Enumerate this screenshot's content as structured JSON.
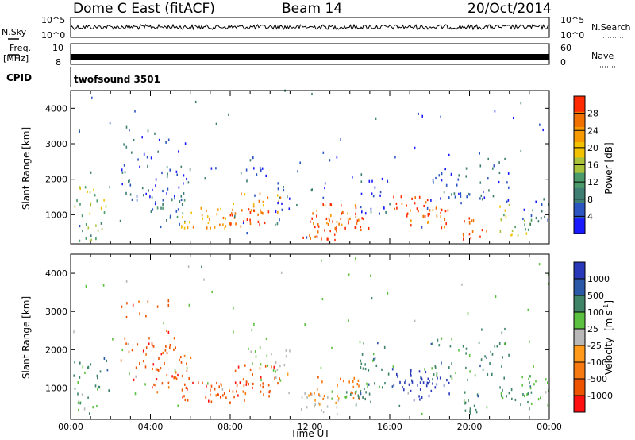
{
  "header": {
    "title": "Dome C East (fitACF)",
    "beam": "Beam 14",
    "date": "20/Oct/2014"
  },
  "side_labels": {
    "nsky": "N.Sky",
    "freq": "Freq.",
    "freq_unit": "[MHz]",
    "cpid": "CPID",
    "nsearch": "N.Search",
    "nave": "Nave"
  },
  "strip_ticks": {
    "nsky_top": "10^5",
    "nsky_bottom": "10^0",
    "freq_top": "10",
    "freq_bottom": "8",
    "nsearch_top": "10^5",
    "nsearch_bottom": "10^0",
    "nave_top": "60",
    "nave_bottom": "0"
  },
  "cpid_text": "twofsound 3501",
  "colors": {
    "power": [
      "#1a1aff",
      "#2b55c0",
      "#3f7f73",
      "#4a9a6a",
      "#a8c33a",
      "#f2c200",
      "#f59a00",
      "#f07000",
      "#ff2a00"
    ],
    "velocity": [
      "#2838b8",
      "#2c58a8",
      "#3f8466",
      "#5cc040",
      "#b8b8b8",
      "#ff9a1a",
      "#f77a10",
      "#ee5400",
      "#ff1010"
    ]
  },
  "chart_data": [
    {
      "type": "heatmap",
      "panel": "power",
      "ylabel": "Slant Range [km]",
      "yticks": [
        "1000",
        "2000",
        "3000",
        "4000"
      ],
      "ylim": [
        180,
        4500
      ],
      "xlim_hours": [
        0,
        24
      ],
      "colorbar_title": "Power [dB]",
      "colorbar_ticks": [
        "4",
        "8",
        "12",
        "16",
        "20",
        "24",
        "28"
      ],
      "colorbar_range": [
        0,
        32
      ]
    },
    {
      "type": "heatmap",
      "panel": "velocity",
      "ylabel": "Slant Range [km]",
      "yticks": [
        "1000",
        "2000",
        "3000",
        "4000"
      ],
      "ylim": [
        180,
        4500
      ],
      "xlim_hours": [
        0,
        24
      ],
      "xlabel": "Time UT",
      "xticks": [
        "00:00",
        "04:00",
        "08:00",
        "12:00",
        "16:00",
        "20:00",
        "00:00"
      ],
      "colorbar_title": "Velocity",
      "colorbar_unit": "[m s",
      "colorbar_unit_sup": "-1",
      "colorbar_unit_end": "]",
      "colorbar_ticks": [
        "1000",
        "500",
        "100",
        "25",
        "-25",
        "-100",
        "-500",
        "-1000"
      ]
    }
  ]
}
